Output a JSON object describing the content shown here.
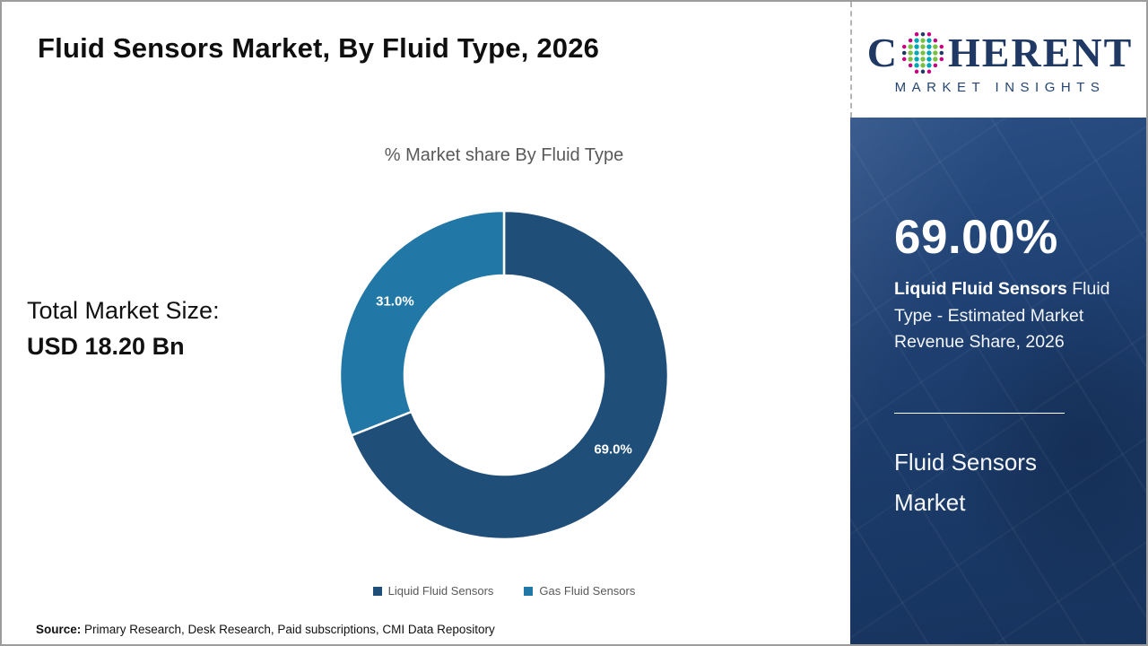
{
  "header": {
    "title": "Fluid Sensors Market, By Fluid Type, 2026"
  },
  "logo": {
    "word_start": "C",
    "word_end": "HERENT",
    "subtitle": "MARKET INSIGHTS",
    "colors": {
      "navy": "#1F3864",
      "teal": "#00A7B5",
      "green": "#7AC143",
      "pink": "#C6007E"
    }
  },
  "chart": {
    "title": "% Market share By Fluid Type"
  },
  "chart_data": {
    "type": "pie",
    "donut": true,
    "title": "% Market share By Fluid Type",
    "start_angle_deg": 0,
    "direction": "clockwise",
    "legend_position": "bottom",
    "series": [
      {
        "name": "Liquid Fluid Sensors",
        "value": 69.0,
        "label": "69.0%",
        "color": "#1F4E79"
      },
      {
        "name": "Gas Fluid Sensors",
        "value": 31.0,
        "label": "31.0%",
        "color": "#2177A5"
      }
    ]
  },
  "total": {
    "label": "Total Market Size:",
    "value": "USD 18.20 Bn"
  },
  "sidebar": {
    "highlight_value": "69.00%",
    "highlight_bold": "Liquid Fluid Sensors",
    "highlight_rest": "Fluid Type - Estimated Market Revenue Share, 2026",
    "market_name": "Fluid Sensors Market",
    "background": "#1d3c6b"
  },
  "source": {
    "label": "Source:",
    "text": "Primary Research, Desk Research, Paid subscriptions, CMI Data Repository"
  }
}
